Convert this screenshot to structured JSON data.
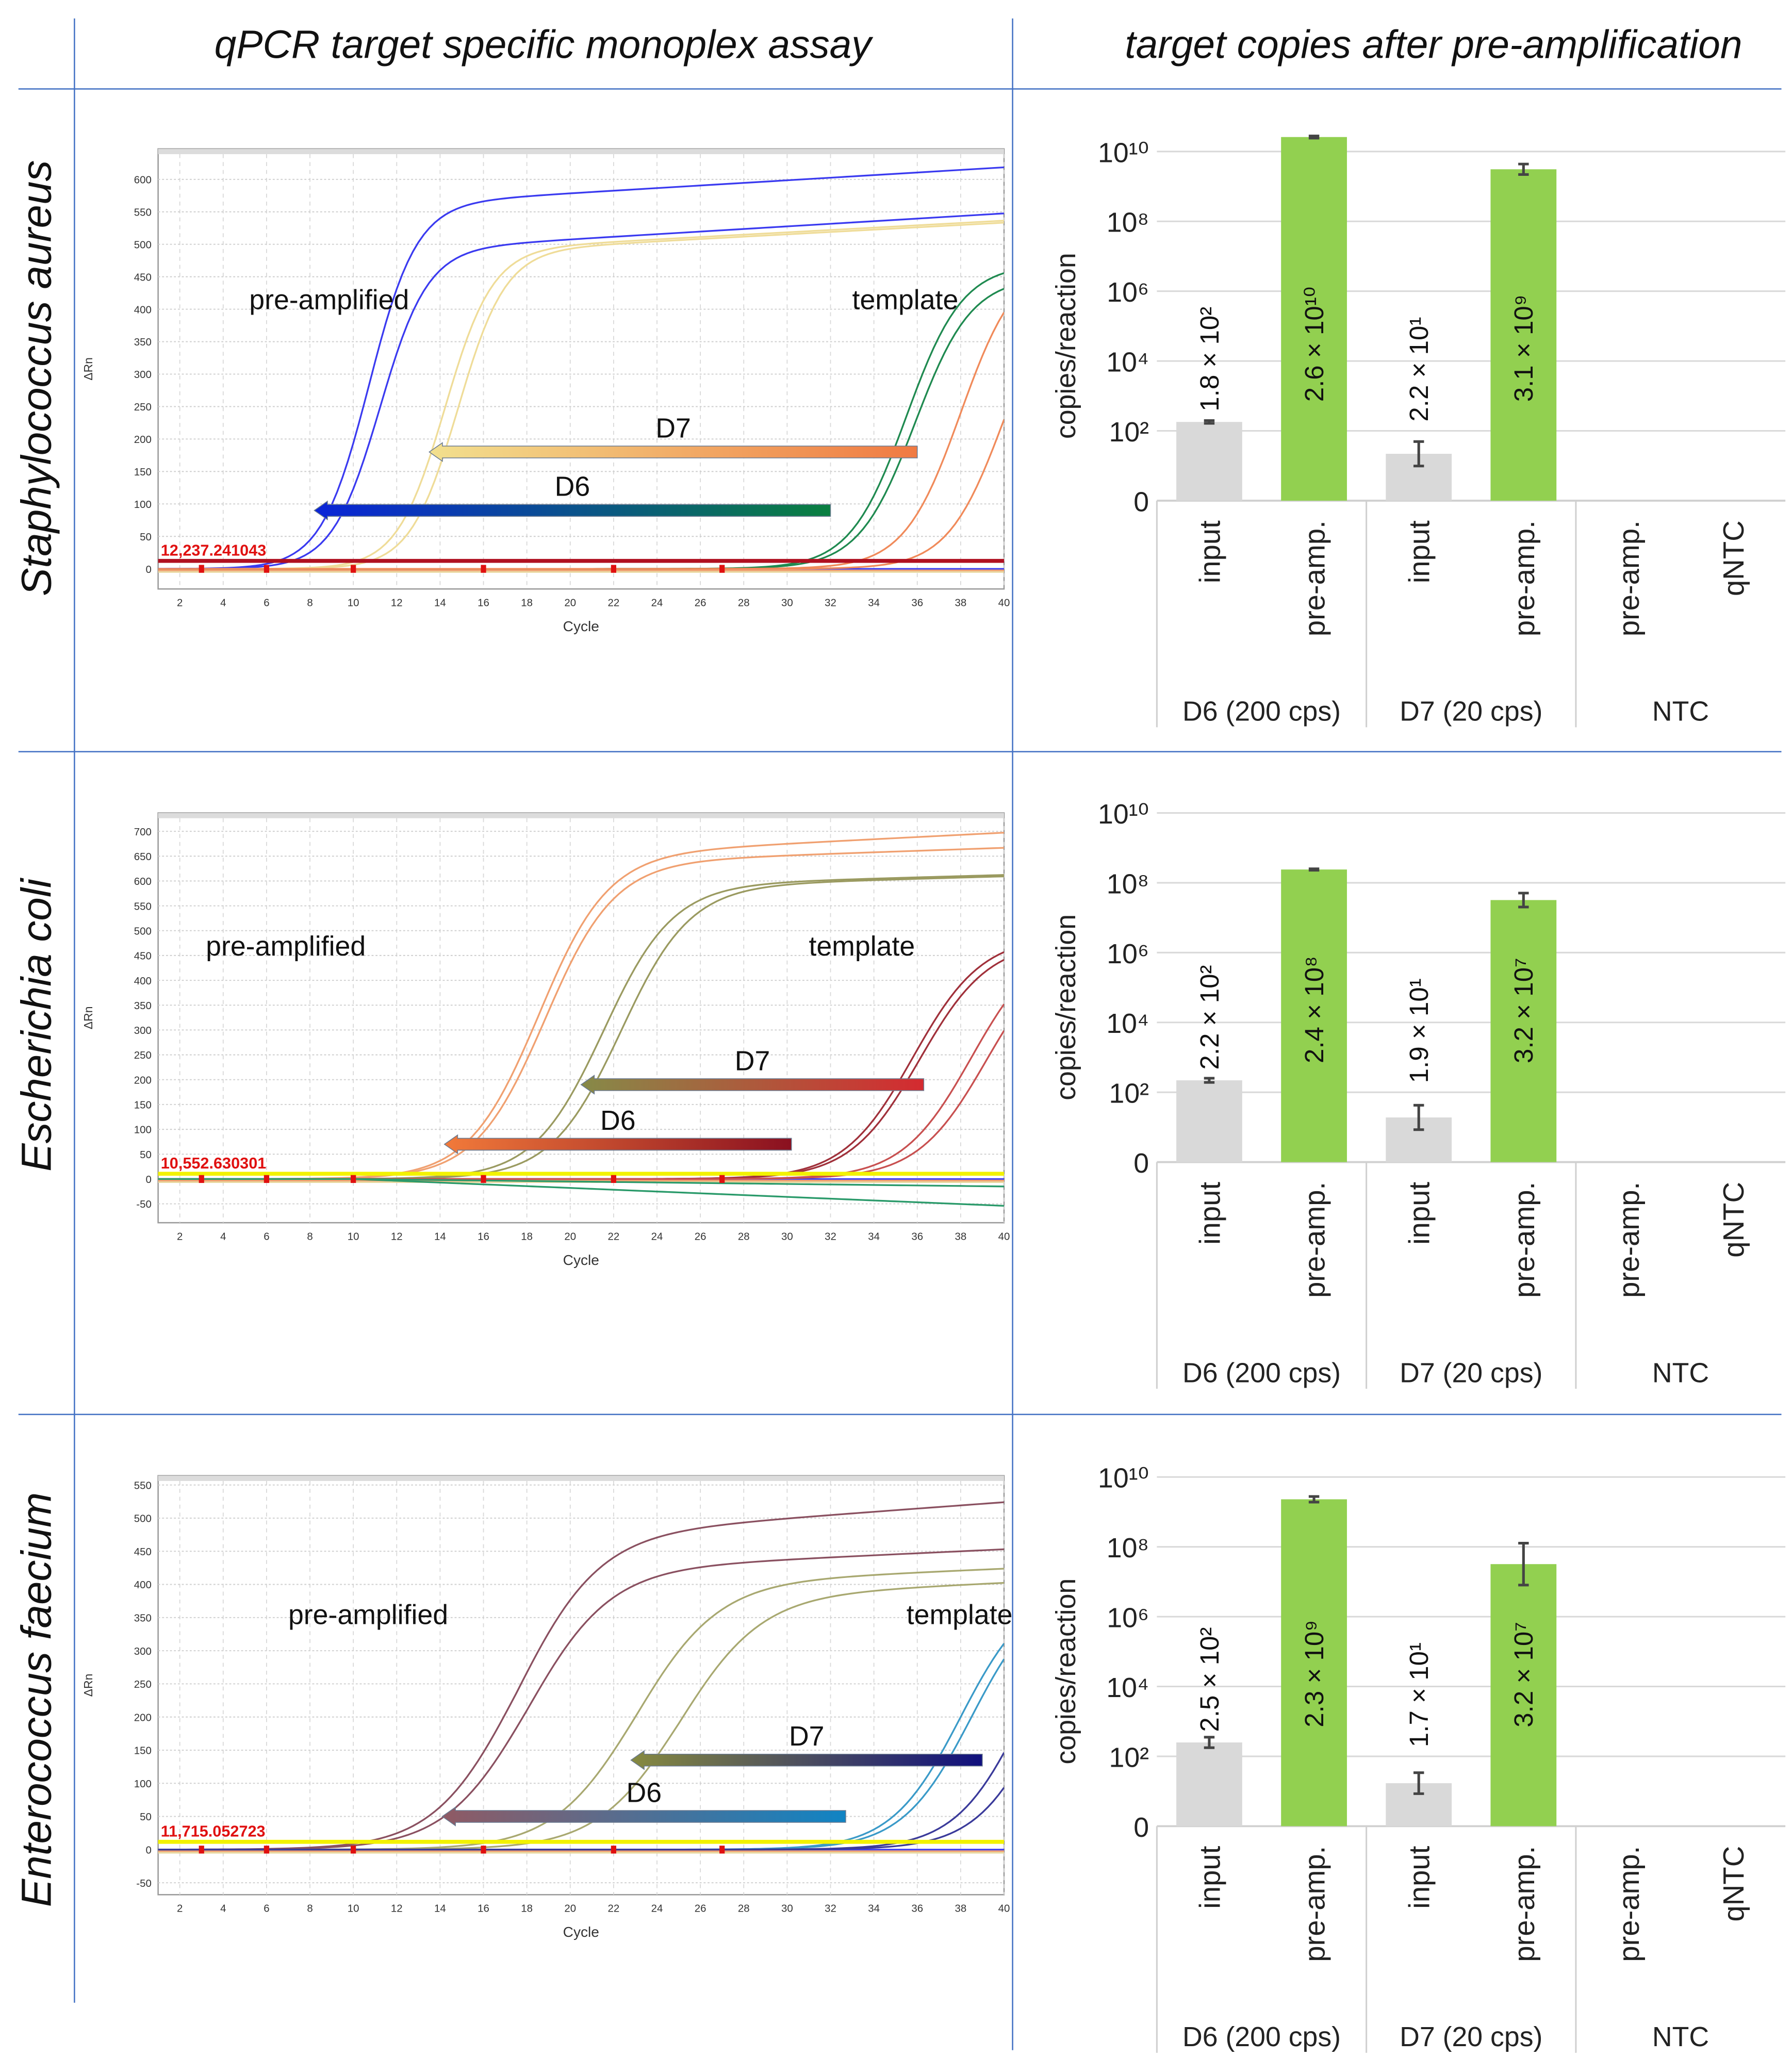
{
  "headers": {
    "left": "qPCR target specific monoplex assay",
    "right": "target copies after pre-amplification"
  },
  "panels": [
    {
      "species": "Staphylococcus aureus"
    },
    {
      "species": "Escherichia coli"
    },
    {
      "species": "Enterococcus faecium"
    }
  ],
  "chart_data": [
    {
      "type": "line",
      "xlabel": "Cycle",
      "ylabel": "ΔRn",
      "xlim": [
        1,
        40
      ],
      "ylim": [
        -31,
        647
      ],
      "xticks": [
        2,
        4,
        6,
        8,
        10,
        12,
        14,
        16,
        18,
        20,
        22,
        24,
        26,
        28,
        30,
        32,
        34,
        36,
        38,
        40
      ],
      "yticks": [
        0,
        50,
        100,
        150,
        200,
        250,
        300,
        350,
        400,
        450,
        500,
        550,
        600
      ],
      "grid": true,
      "threshold": {
        "value": 12.237,
        "label": "12,237.241043",
        "color": "#b01020"
      },
      "text_annotations": [
        "pre-amplified",
        "template"
      ],
      "arrows": [
        {
          "label": "D7",
          "from_cycle": 36,
          "to_cycle": 13.5,
          "level": 180,
          "colors": [
            "#f2e08e",
            "#f07a42"
          ]
        },
        {
          "label": "D6",
          "from_cycle": 32,
          "to_cycle": 8.2,
          "level": 90,
          "colors": [
            "#0a24d8",
            "#0a8040"
          ]
        }
      ],
      "series": [
        {
          "color": "#3a3af0",
          "ct": 10.7,
          "plateau": 560,
          "slope": 1.1,
          "drift": 2.0
        },
        {
          "color": "#3a3af0",
          "ct": 11.2,
          "plateau": 490,
          "slope": 1.1,
          "drift": 2.0
        },
        {
          "color": "#efdc98",
          "ct": 14.2,
          "plateau": 490,
          "slope": 1.1,
          "drift": 1.8
        },
        {
          "color": "#efdc98",
          "ct": 14.8,
          "plateau": 488,
          "slope": 1.1,
          "drift": 1.8
        },
        {
          "color": "#1f8a50",
          "ct": 35.5,
          "plateau": 470,
          "slope": 1.3,
          "drift": 0
        },
        {
          "color": "#1f8a50",
          "ct": 35.9,
          "plateau": 450,
          "slope": 1.3,
          "drift": 0
        },
        {
          "color": "#f08a5a",
          "ct": 38.0,
          "plateau": 480,
          "slope": 1.3,
          "drift": 0
        },
        {
          "color": "#f08a5a",
          "ct": 40.0,
          "plateau": 460,
          "slope": 1.3,
          "drift": 0
        }
      ]
    },
    {
      "type": "bar",
      "ylabel": "copies/reaction",
      "yscale": "log",
      "ylim": [
        1,
        10000000000.0
      ],
      "ytick_labels": [
        "0",
        "10²",
        "10⁴",
        "10⁶",
        "10⁸",
        "10¹⁰"
      ],
      "groups": [
        {
          "label": "D6 (200 cps)",
          "categories": [
            "input",
            "pre-amp."
          ]
        },
        {
          "label": "D7 (20 cps)",
          "categories": [
            "input",
            "pre-amp."
          ]
        },
        {
          "label": "NTC",
          "categories": [
            "pre-amp.",
            "qNTC"
          ]
        }
      ],
      "values": [
        180,
        26000000000.0,
        22,
        3100000000.0,
        null,
        null
      ],
      "data_labels": [
        "1.8 × 10²",
        "2.6 × 10¹⁰",
        "2.2 × 10¹",
        "3.1 × 10⁹",
        "",
        ""
      ],
      "error_log10": [
        0.04,
        0.03,
        0.35,
        0.15,
        0,
        0
      ],
      "colors": {
        "input": "#d9d9d9",
        "pre-amp": "#92d050"
      }
    },
    {
      "type": "line",
      "xlabel": "Cycle",
      "ylabel": "ΔRn",
      "xlim": [
        1,
        40
      ],
      "ylim": [
        -88,
        737
      ],
      "xticks": [
        2,
        4,
        6,
        8,
        10,
        12,
        14,
        16,
        18,
        20,
        22,
        24,
        26,
        28,
        30,
        32,
        34,
        36,
        38,
        40
      ],
      "yticks": [
        -50,
        0,
        50,
        100,
        150,
        200,
        250,
        300,
        350,
        400,
        450,
        500,
        550,
        600,
        650,
        700
      ],
      "grid": true,
      "threshold": {
        "value": 10.55,
        "label": "10,552.630301",
        "color": "#f2f200"
      },
      "text_annotations": [
        "pre-amplified",
        "template"
      ],
      "arrows": [
        {
          "label": "D7",
          "from_cycle": 36.3,
          "to_cycle": 20.5,
          "level": 190,
          "colors": [
            "#868a48",
            "#d42a30"
          ]
        },
        {
          "label": "D6",
          "from_cycle": 30.2,
          "to_cycle": 14.2,
          "level": 70,
          "colors": [
            "#f27a3a",
            "#8a1020"
          ]
        }
      ],
      "series": [
        {
          "color": "#f0a070",
          "ct": 18.5,
          "plateau": 650,
          "slope": 1.6,
          "drift": 2.2
        },
        {
          "color": "#f0a070",
          "ct": 18.8,
          "plateau": 635,
          "slope": 1.6,
          "drift": 1.5
        },
        {
          "color": "#9a9a60",
          "ct": 21.5,
          "plateau": 590,
          "slope": 1.6,
          "drift": 1.2
        },
        {
          "color": "#9a9a60",
          "ct": 22.3,
          "plateau": 588,
          "slope": 1.6,
          "drift": 1.2
        },
        {
          "color": "#a0303a",
          "ct": 35.8,
          "plateau": 490,
          "slope": 1.6,
          "drift": 0
        },
        {
          "color": "#a0303a",
          "ct": 36.1,
          "plateau": 480,
          "slope": 1.6,
          "drift": 0
        },
        {
          "color": "#c85050",
          "ct": 38.5,
          "plateau": 490,
          "slope": 1.6,
          "drift": 0
        },
        {
          "color": "#c85050",
          "ct": 39.2,
          "plateau": 480,
          "slope": 1.6,
          "drift": 0
        },
        {
          "color": "#2a9a6a",
          "ct": 10,
          "plateau": 0,
          "slope": 1,
          "drift": -1.8
        },
        {
          "color": "#2a9a6a",
          "ct": 10,
          "plateau": 0,
          "slope": 1,
          "drift": -0.5
        }
      ]
    },
    {
      "type": "bar",
      "ylabel": "copies/reaction",
      "yscale": "log",
      "ylim": [
        1,
        10000000000.0
      ],
      "ytick_labels": [
        "0",
        "10²",
        "10⁴",
        "10⁶",
        "10⁸",
        "10¹⁰"
      ],
      "groups": [
        {
          "label": "D6 (200 cps)",
          "categories": [
            "input",
            "pre-amp."
          ]
        },
        {
          "label": "D7 (20 cps)",
          "categories": [
            "input",
            "pre-amp."
          ]
        },
        {
          "label": "NTC",
          "categories": [
            "pre-amp.",
            "qNTC"
          ]
        }
      ],
      "values": [
        220,
        240000000.0,
        19,
        32000000.0,
        null,
        null
      ],
      "data_labels": [
        "2.2 × 10²",
        "2.4 × 10⁸",
        "1.9 × 10¹",
        "3.2 × 10⁷",
        "",
        ""
      ],
      "error_log10": [
        0.06,
        0.02,
        0.35,
        0.2,
        0,
        0
      ],
      "colors": {
        "input": "#d9d9d9",
        "pre-amp": "#92d050"
      }
    },
    {
      "type": "line",
      "xlabel": "Cycle",
      "ylabel": "ΔRn",
      "xlim": [
        1,
        40
      ],
      "ylim": [
        -68,
        564
      ],
      "xticks": [
        2,
        4,
        6,
        8,
        10,
        12,
        14,
        16,
        18,
        20,
        22,
        24,
        26,
        28,
        30,
        32,
        34,
        36,
        38,
        40
      ],
      "yticks": [
        -50,
        0,
        50,
        100,
        150,
        200,
        250,
        300,
        350,
        400,
        450,
        500,
        550
      ],
      "grid": true,
      "threshold": {
        "value": 11.715,
        "label": "11,715.052723",
        "color": "#f2f200"
      },
      "text_annotations": [
        "pre-amplified",
        "template"
      ],
      "arrows": [
        {
          "label": "D7",
          "from_cycle": 39,
          "to_cycle": 22.8,
          "level": 135,
          "colors": [
            "#868a40",
            "#10107e"
          ]
        },
        {
          "label": "D6",
          "from_cycle": 32.7,
          "to_cycle": 14.1,
          "level": 50,
          "colors": [
            "#905a64",
            "#1084c4"
          ]
        }
      ],
      "series": [
        {
          "color": "#8a5060",
          "ct": 17.5,
          "plateau": 470,
          "slope": 1.9,
          "drift": 2.4
        },
        {
          "color": "#8a5060",
          "ct": 18.0,
          "plateau": 420,
          "slope": 1.9,
          "drift": 1.5
        },
        {
          "color": "#a8a870",
          "ct": 23.0,
          "plateau": 400,
          "slope": 1.9,
          "drift": 1.4
        },
        {
          "color": "#a8a870",
          "ct": 25.0,
          "plateau": 380,
          "slope": 1.9,
          "drift": 1.5
        },
        {
          "color": "#3a9ac8",
          "ct": 38.0,
          "plateau": 400,
          "slope": 1.6,
          "drift": 0
        },
        {
          "color": "#3a9ac8",
          "ct": 38.5,
          "plateau": 400,
          "slope": 1.6,
          "drift": 0
        },
        {
          "color": "#3a3a9a",
          "ct": 41.0,
          "plateau": 420,
          "slope": 1.6,
          "drift": 0
        },
        {
          "color": "#3a3a9a",
          "ct": 42.0,
          "plateau": 420,
          "slope": 1.6,
          "drift": 0
        }
      ]
    },
    {
      "type": "bar",
      "ylabel": "copies/reaction",
      "yscale": "log",
      "ylim": [
        1,
        10000000000.0
      ],
      "ytick_labels": [
        "0",
        "10²",
        "10⁴",
        "10⁶",
        "10⁸",
        "10¹⁰"
      ],
      "groups": [
        {
          "label": "D6 (200 cps)",
          "categories": [
            "input",
            "pre-amp."
          ]
        },
        {
          "label": "D7 (20 cps)",
          "categories": [
            "input",
            "pre-amp."
          ]
        },
        {
          "label": "NTC",
          "categories": [
            "pre-amp.",
            "qNTC"
          ]
        }
      ],
      "values": [
        250,
        2300000000.0,
        17,
        32000000.0,
        null,
        null
      ],
      "data_labels": [
        "2.5 × 10²",
        "2.3 × 10⁹",
        "1.7 × 10¹",
        "3.2 × 10⁷",
        "",
        ""
      ],
      "error_log10": [
        0.15,
        0.08,
        0.3,
        0.6,
        0,
        0
      ],
      "colors": {
        "input": "#d9d9d9",
        "pre-amp": "#92d050"
      }
    }
  ]
}
